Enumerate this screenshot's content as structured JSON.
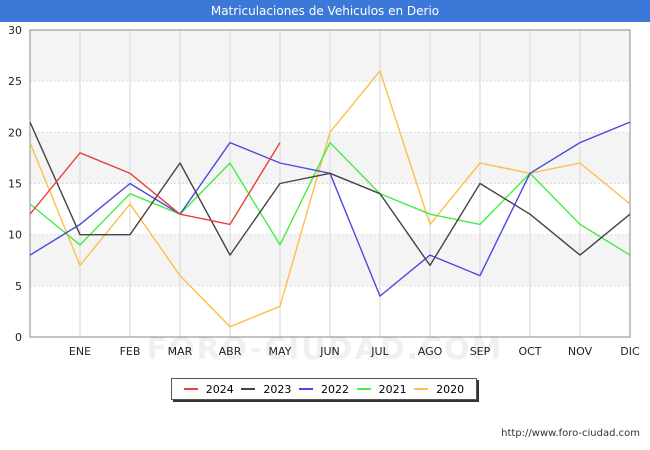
{
  "chart_data": {
    "type": "line",
    "title": "Matriculaciones de Vehiculos en Derio",
    "categories": [
      "",
      "ENE",
      "FEB",
      "MAR",
      "ABR",
      "MAY",
      "JUN",
      "JUL",
      "AGO",
      "SEP",
      "OCT",
      "NOV",
      "DIC"
    ],
    "ylim": [
      0,
      30
    ],
    "yticks": [
      0,
      5,
      10,
      15,
      20,
      25,
      30
    ],
    "series": [
      {
        "name": "2024",
        "color": "#e8423f",
        "values": [
          12,
          18,
          16,
          12,
          11,
          19,
          null,
          null,
          null,
          null,
          null,
          null,
          null
        ]
      },
      {
        "name": "2023",
        "color": "#444444",
        "values": [
          21,
          10,
          10,
          17,
          8,
          15,
          16,
          14,
          7,
          15,
          12,
          8,
          12
        ]
      },
      {
        "name": "2022",
        "color": "#4a4ae0",
        "values": [
          8,
          11,
          15,
          12,
          19,
          17,
          16,
          4,
          8,
          6,
          16,
          19,
          21
        ]
      },
      {
        "name": "2021",
        "color": "#44ee44",
        "values": [
          13,
          9,
          14,
          12,
          17,
          9,
          19,
          14,
          12,
          11,
          16,
          11,
          8
        ]
      },
      {
        "name": "2020",
        "color": "#fbbf4a",
        "values": [
          19,
          7,
          13,
          6,
          1,
          3,
          20,
          26,
          11,
          17,
          16,
          17,
          13
        ]
      }
    ]
  },
  "watermark": "FORO-CIUDAD.COM",
  "footer_url": "http://www.foro-ciudad.com"
}
